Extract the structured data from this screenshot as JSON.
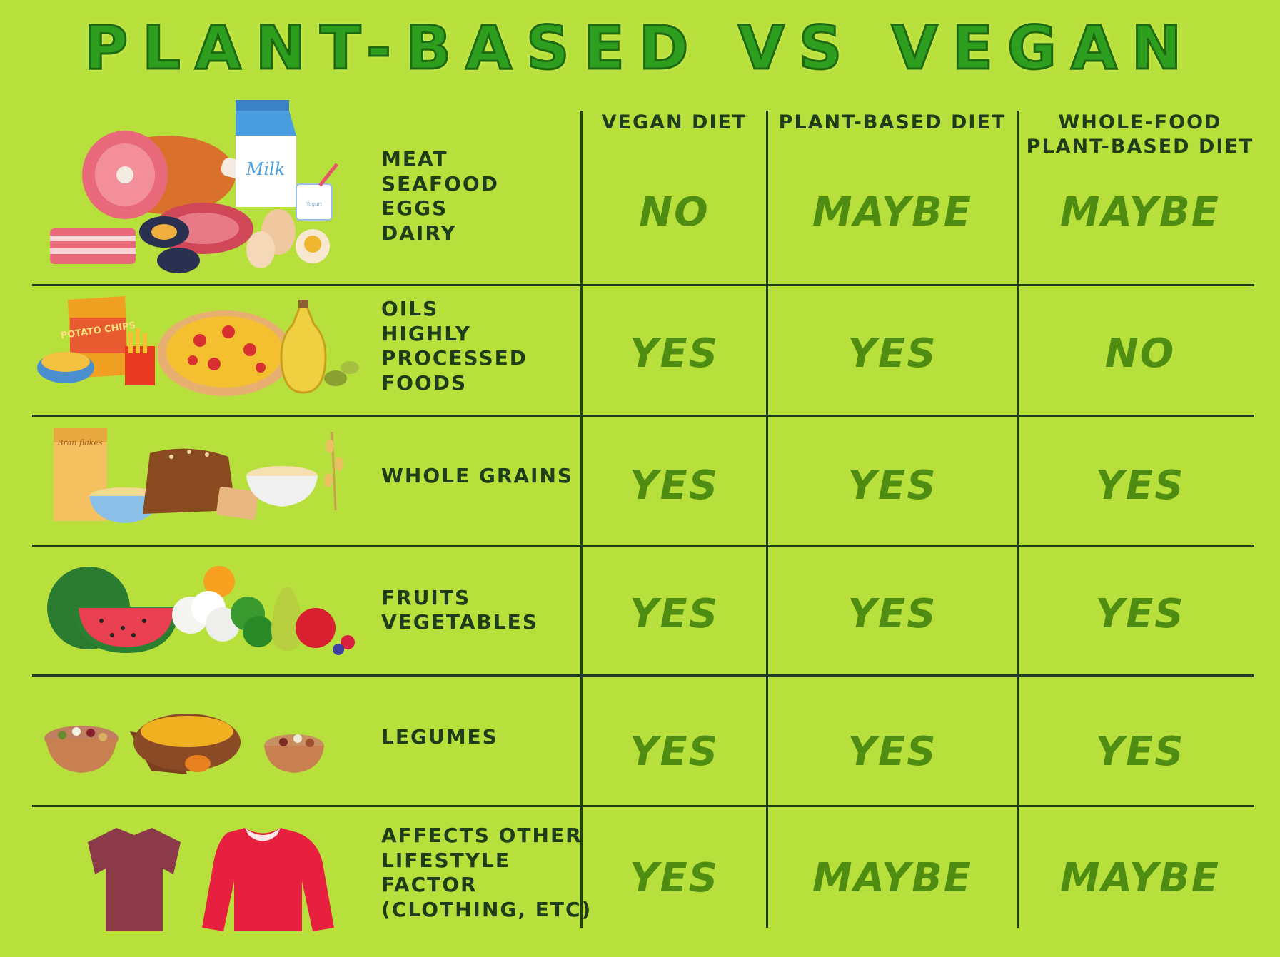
{
  "title": "PLANT-BASED VS VEGAN",
  "columns": [
    "VEGAN DIET",
    "PLANT-BASED DIET",
    "WHOLE-FOOD PLANT-BASED DIET"
  ],
  "column_lines": [
    [
      "VEGAN DIET"
    ],
    [
      "PLANT-BASED DIET"
    ],
    [
      "WHOLE-FOOD",
      "PLANT-BASED DIET"
    ]
  ],
  "rows": [
    {
      "label_lines": [
        "MEAT",
        "SEAFOOD",
        "EGGS",
        "DAIRY"
      ],
      "values": [
        "NO",
        "MAYBE",
        "MAYBE"
      ],
      "icon": "meat-dairy-icon"
    },
    {
      "label_lines": [
        "OILS",
        "HIGHLY",
        "PROCESSED",
        "FOODS"
      ],
      "values": [
        "YES",
        "YES",
        "NO"
      ],
      "icon": "processed-foods-icon"
    },
    {
      "label_lines": [
        "WHOLE GRAINS"
      ],
      "values": [
        "YES",
        "YES",
        "YES"
      ],
      "icon": "whole-grains-icon"
    },
    {
      "label_lines": [
        "FRUITS",
        "VEGETABLES"
      ],
      "values": [
        "YES",
        "YES",
        "YES"
      ],
      "icon": "fruits-vegetables-icon"
    },
    {
      "label_lines": [
        "LEGUMES"
      ],
      "values": [
        "YES",
        "YES",
        "YES"
      ],
      "icon": "legumes-icon"
    },
    {
      "label_lines": [
        "AFFECTS OTHER",
        "LIFESTYLE",
        "FACTOR",
        "(CLOTHING, ETC)"
      ],
      "values": [
        "YES",
        "MAYBE",
        "MAYBE"
      ],
      "icon": "clothing-icon"
    }
  ],
  "illustration_text": {
    "milk": "Milk",
    "chips": "POTATO CHIPS",
    "cereal": "Bran flakes",
    "yogurt": "Yogurt"
  },
  "colors": {
    "background": "#b8e03c",
    "title": "#2e9e1e",
    "grid": "#1f3d1a",
    "values": "#4f8d12"
  }
}
